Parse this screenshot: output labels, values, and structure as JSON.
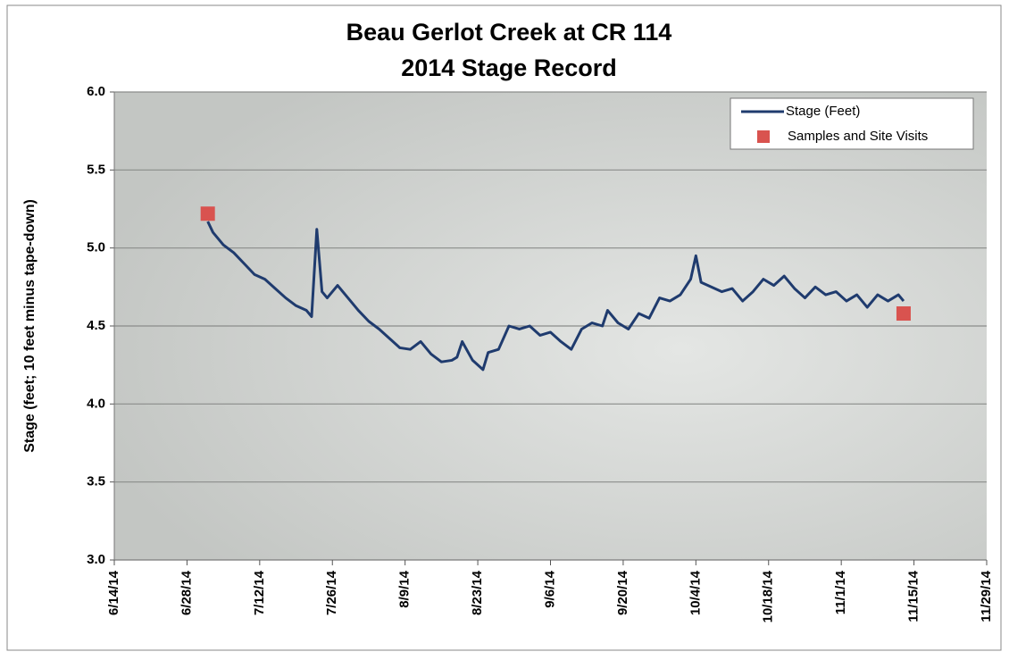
{
  "chart_data": {
    "type": "line",
    "title": [
      "Beau Gerlot Creek at CR 114",
      "2014 Stage Record"
    ],
    "y_label": "Stage (feet; 10 feet minus tape-down)",
    "xlim": [
      "2014-06-14",
      "2014-11-29"
    ],
    "xticks": [
      {
        "value": "2014-06-14",
        "label": "6/14/14"
      },
      {
        "value": "2014-06-28",
        "label": "6/28/14"
      },
      {
        "value": "2014-07-12",
        "label": "7/12/14"
      },
      {
        "value": "2014-07-26",
        "label": "7/26/14"
      },
      {
        "value": "2014-08-09",
        "label": "8/9/14"
      },
      {
        "value": "2014-08-23",
        "label": "8/23/14"
      },
      {
        "value": "2014-09-06",
        "label": "9/6/14"
      },
      {
        "value": "2014-09-20",
        "label": "9/20/14"
      },
      {
        "value": "2014-10-04",
        "label": "10/4/14"
      },
      {
        "value": "2014-10-18",
        "label": "10/18/14"
      },
      {
        "value": "2014-11-01",
        "label": "11/1/14"
      },
      {
        "value": "2014-11-15",
        "label": "11/15/14"
      },
      {
        "value": "2014-11-29",
        "label": "11/29/14"
      }
    ],
    "ylim": [
      3,
      6
    ],
    "yticks": [
      {
        "value": 3,
        "label": "3.0"
      },
      3.5,
      {
        "value": 4,
        "label": "4.0"
      },
      4.5,
      {
        "value": 5,
        "label": "5.0"
      },
      5.5,
      {
        "value": 6,
        "label": "6.0"
      }
    ],
    "grid": true,
    "legend": "top-right",
    "series": [
      {
        "name": "Stage (Feet)",
        "color": "#1f3b6e",
        "mode": "line",
        "x": [
          "2014-07-02",
          "2014-07-03",
          "2014-07-05",
          "2014-07-07",
          "2014-07-09",
          "2014-07-11",
          "2014-07-13",
          "2014-07-15",
          "2014-07-17",
          "2014-07-19",
          "2014-07-21",
          "2014-07-22",
          "2014-07-23",
          "2014-07-24",
          "2014-07-25",
          "2014-07-26",
          "2014-07-27",
          "2014-07-29",
          "2014-07-31",
          "2014-08-02",
          "2014-08-04",
          "2014-08-06",
          "2014-08-08",
          "2014-08-10",
          "2014-08-12",
          "2014-08-14",
          "2014-08-16",
          "2014-08-18",
          "2014-08-19",
          "2014-08-20",
          "2014-08-22",
          "2014-08-24",
          "2014-08-25",
          "2014-08-27",
          "2014-08-29",
          "2014-08-31",
          "2014-09-02",
          "2014-09-04",
          "2014-09-06",
          "2014-09-08",
          "2014-09-10",
          "2014-09-12",
          "2014-09-14",
          "2014-09-16",
          "2014-09-17",
          "2014-09-19",
          "2014-09-21",
          "2014-09-23",
          "2014-09-25",
          "2014-09-27",
          "2014-09-29",
          "2014-10-01",
          "2014-10-03",
          "2014-10-04",
          "2014-10-05",
          "2014-10-07",
          "2014-10-09",
          "2014-10-11",
          "2014-10-13",
          "2014-10-15",
          "2014-10-17",
          "2014-10-19",
          "2014-10-21",
          "2014-10-23",
          "2014-10-25",
          "2014-10-27",
          "2014-10-29",
          "2014-10-31",
          "2014-11-02",
          "2014-11-04",
          "2014-11-06",
          "2014-11-08",
          "2014-11-10",
          "2014-11-12",
          "2014-11-13"
        ],
        "values": [
          5.17,
          5.1,
          5.02,
          4.97,
          4.9,
          4.83,
          4.8,
          4.74,
          4.68,
          4.63,
          4.6,
          4.56,
          5.12,
          4.72,
          4.68,
          4.72,
          4.76,
          4.68,
          4.6,
          4.53,
          4.48,
          4.42,
          4.36,
          4.35,
          4.4,
          4.32,
          4.27,
          4.28,
          4.3,
          4.4,
          4.28,
          4.22,
          4.33,
          4.35,
          4.5,
          4.48,
          4.5,
          4.44,
          4.46,
          4.4,
          4.35,
          4.48,
          4.52,
          4.5,
          4.6,
          4.52,
          4.48,
          4.58,
          4.55,
          4.68,
          4.66,
          4.7,
          4.8,
          4.95,
          4.78,
          4.75,
          4.72,
          4.74,
          4.66,
          4.72,
          4.8,
          4.76,
          4.82,
          4.74,
          4.68,
          4.75,
          4.7,
          4.72,
          4.66,
          4.7,
          4.62,
          4.7,
          4.66,
          4.7,
          4.66
        ]
      },
      {
        "name": "Samples and Site Visits",
        "color": "#d9534f",
        "mode": "markers",
        "x": [
          "2014-07-02",
          "2014-11-13"
        ],
        "values": [
          5.22,
          4.58
        ]
      }
    ]
  }
}
